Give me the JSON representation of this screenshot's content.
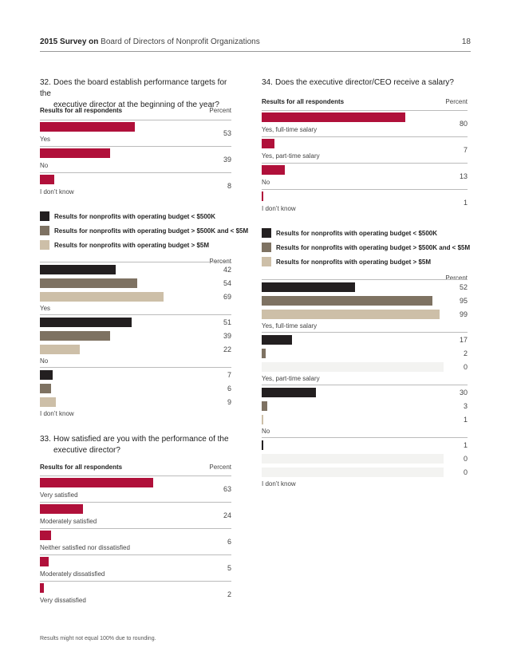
{
  "header": {
    "title_bold": "2015 Survey on",
    "title_rest": "Board of Directors of Nonprofit Organizations",
    "page_number": "18"
  },
  "colors": {
    "all": "#b0103a",
    "small": "#231f20",
    "mid": "#7e7262",
    "large": "#cdbfa8"
  },
  "legend": {
    "small": "Results for nonprofits with operating budget < $500K",
    "mid": "Results for nonprofits with operating budget > $500K and < $5M",
    "large": "Results for nonprofits with operating budget > $5M"
  },
  "labels": {
    "all_respondents": "Results for all respondents",
    "percent": "Percent"
  },
  "q32": {
    "number": "32.",
    "line1": "Does the board establish performance targets for the",
    "line2": "executive director at the beginning of the year?",
    "all": [
      {
        "label": "Yes",
        "value": 53
      },
      {
        "label": "No",
        "value": 39
      },
      {
        "label": "I don’t know",
        "value": 8
      }
    ],
    "by_budget": [
      {
        "label": "Yes",
        "small": 42,
        "mid": 54,
        "large": 69
      },
      {
        "label": "No",
        "small": 51,
        "mid": 39,
        "large": 22
      },
      {
        "label": "I don’t know",
        "small": 7,
        "mid": 6,
        "large": 9
      }
    ]
  },
  "q33": {
    "number": "33.",
    "line1": "How satisfied are you with the performance of the",
    "line2": "executive director?",
    "all": [
      {
        "label": "Very satisfied",
        "value": 63
      },
      {
        "label": "Moderately satisfied",
        "value": 24
      },
      {
        "label": "Neither satisfied nor dissatisfied",
        "value": 6
      },
      {
        "label": "Moderately dissatisfied",
        "value": 5
      },
      {
        "label": "Very dissatisfied",
        "value": 2
      }
    ]
  },
  "q34": {
    "number": "34.",
    "line1": "Does the executive director/CEO receive a salary?",
    "all": [
      {
        "label": "Yes, full-time salary",
        "value": 80
      },
      {
        "label": "Yes, part-time salary",
        "value": 7
      },
      {
        "label": "No",
        "value": 13
      },
      {
        "label": "I don’t know",
        "value": 1
      }
    ],
    "by_budget": [
      {
        "label": "Yes, full-time salary",
        "small": 52,
        "mid": 95,
        "large": 99
      },
      {
        "label": "Yes, part-time salary",
        "small": 17,
        "mid": 2,
        "large": 0
      },
      {
        "label": "No",
        "small": 30,
        "mid": 3,
        "large": 1
      },
      {
        "label": "I don’t know",
        "small": 1,
        "mid": 0,
        "large": 0
      }
    ]
  },
  "footnote": "Results might not equal 100% due to rounding."
}
